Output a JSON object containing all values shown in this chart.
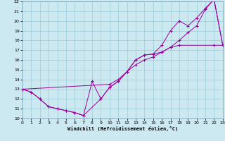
{
  "xlabel": "Windchill (Refroidissement éolien,°C)",
  "xlim": [
    0,
    23
  ],
  "ylim": [
    10,
    22
  ],
  "xticks": [
    0,
    1,
    2,
    3,
    4,
    5,
    6,
    7,
    8,
    9,
    10,
    11,
    12,
    13,
    14,
    15,
    16,
    17,
    18,
    19,
    20,
    21,
    22,
    23
  ],
  "yticks": [
    10,
    11,
    12,
    13,
    14,
    15,
    16,
    17,
    18,
    19,
    20,
    21,
    22
  ],
  "bg_color": "#cce8f0",
  "grid_color": "#99ccd9",
  "line_color": "#990099",
  "line1": {
    "x": [
      0,
      1,
      2,
      3,
      4,
      5,
      6,
      7,
      8,
      9,
      10,
      11,
      12,
      13,
      14,
      15,
      16,
      17,
      18,
      22,
      23
    ],
    "y": [
      13,
      12.7,
      12.0,
      11.2,
      11.0,
      10.8,
      10.6,
      10.3,
      13.8,
      12.0,
      13.2,
      13.8,
      14.8,
      16.0,
      16.5,
      16.6,
      16.8,
      17.3,
      17.5,
      17.5,
      17.5
    ]
  },
  "line2": {
    "x": [
      0,
      1,
      2,
      3,
      4,
      5,
      6,
      7,
      9,
      10,
      11,
      12,
      13,
      14,
      15,
      16,
      17,
      18,
      19,
      20,
      21,
      22,
      23
    ],
    "y": [
      13,
      12.7,
      12.0,
      11.2,
      11.0,
      10.8,
      10.6,
      10.3,
      12.0,
      13.2,
      13.8,
      14.8,
      16.0,
      16.5,
      16.6,
      17.5,
      19.0,
      20.0,
      19.5,
      20.3,
      21.3,
      22.2,
      17.5
    ]
  },
  "line3": {
    "x": [
      0,
      10,
      11,
      12,
      13,
      14,
      15,
      16,
      17,
      18,
      19,
      20,
      21,
      22,
      23
    ],
    "y": [
      13,
      13.5,
      14.0,
      14.8,
      15.5,
      16.0,
      16.3,
      16.8,
      17.3,
      18.0,
      18.8,
      19.5,
      21.2,
      22.2,
      17.5
    ]
  }
}
